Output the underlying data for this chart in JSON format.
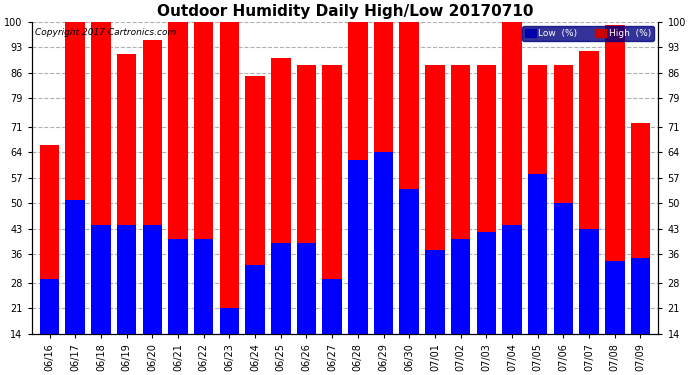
{
  "title": "Outdoor Humidity Daily High/Low 20170710",
  "copyright": "Copyright 2017 Cartronics.com",
  "categories": [
    "06/16",
    "06/17",
    "06/18",
    "06/19",
    "06/20",
    "06/21",
    "06/22",
    "06/23",
    "06/24",
    "06/25",
    "06/26",
    "06/27",
    "06/28",
    "06/29",
    "06/30",
    "07/01",
    "07/02",
    "07/03",
    "07/04",
    "07/05",
    "07/06",
    "07/07",
    "07/08",
    "07/09"
  ],
  "high_values": [
    66,
    100,
    100,
    91,
    95,
    100,
    100,
    100,
    85,
    90,
    88,
    88,
    100,
    100,
    100,
    88,
    88,
    88,
    100,
    88,
    88,
    92,
    99,
    72
  ],
  "low_values": [
    29,
    51,
    44,
    44,
    44,
    40,
    40,
    21,
    33,
    39,
    39,
    29,
    62,
    64,
    54,
    37,
    40,
    42,
    44,
    58,
    50,
    43,
    34,
    35
  ],
  "bar_color_high": "#ff0000",
  "bar_color_low": "#0000ff",
  "bg_color": "#ffffff",
  "grid_color": "#b0b0b0",
  "yticks": [
    14,
    21,
    28,
    36,
    43,
    50,
    57,
    64,
    71,
    79,
    86,
    93,
    100
  ],
  "ymin": 14,
  "ymax": 100,
  "legend_low_bg": "#0000aa",
  "legend_high_bg": "#cc0000",
  "title_fontsize": 11,
  "axis_fontsize": 7,
  "copyright_fontsize": 6.5
}
